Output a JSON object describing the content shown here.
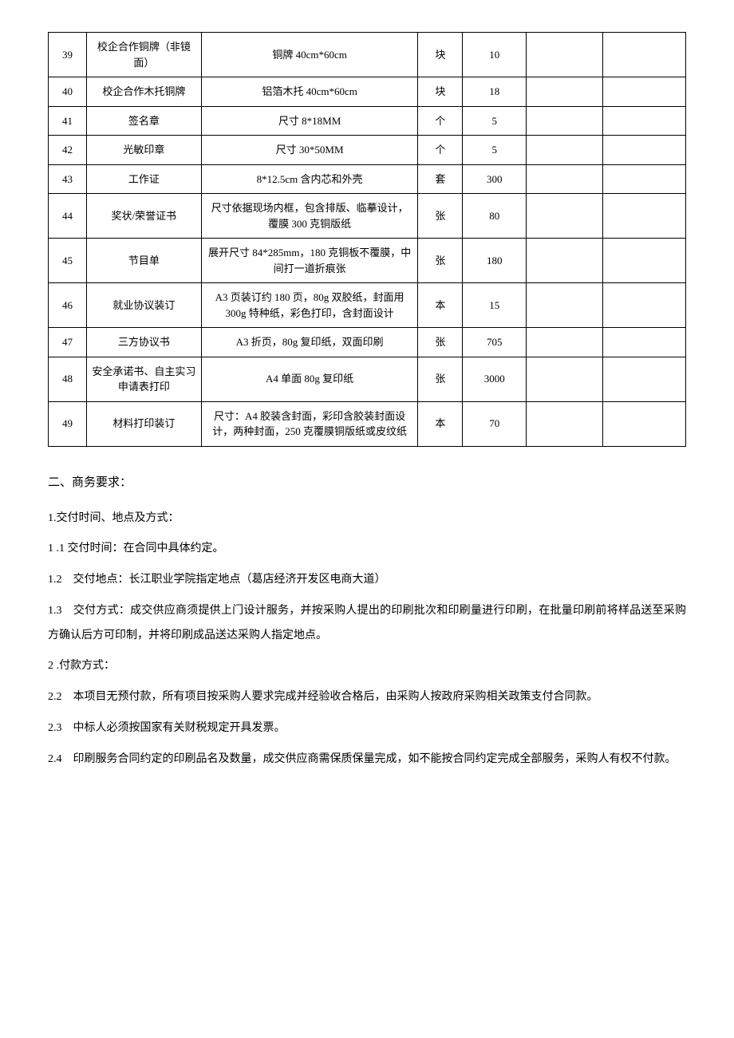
{
  "table": {
    "rows": [
      {
        "idx": "39",
        "name": "校企合作铜牌（非镜面）",
        "spec": "铜牌 40cm*60cm",
        "unit": "块",
        "qty": "10"
      },
      {
        "idx": "40",
        "name": "校企合作木托铜牌",
        "spec": "铝箔木托 40cm*60cm",
        "unit": "块",
        "qty": "18"
      },
      {
        "idx": "41",
        "name": "签名章",
        "spec": "尺寸 8*18MM",
        "unit": "个",
        "qty": "5"
      },
      {
        "idx": "42",
        "name": "光敏印章",
        "spec": "尺寸 30*50MM",
        "unit": "个",
        "qty": "5"
      },
      {
        "idx": "43",
        "name": "工作证",
        "spec": "8*12.5cm 含内芯和外壳",
        "unit": "套",
        "qty": "300"
      },
      {
        "idx": "44",
        "name": "奖状/荣誉证书",
        "spec": "尺寸依据现场内框，包含排版、临摹设计，覆膜 300 克铜版纸",
        "unit": "张",
        "qty": "80"
      },
      {
        "idx": "45",
        "name": "节目单",
        "spec": "展开尺寸 84*285mm，180 克铜板不覆膜，中间打一道折痕张",
        "unit": "张",
        "qty": "180"
      },
      {
        "idx": "46",
        "name": "就业协议装订",
        "spec": "A3 页装订约 180 页，80g 双胶纸，封面用 300g 特种纸，彩色打印，含封面设计",
        "unit": "本",
        "qty": "15"
      },
      {
        "idx": "47",
        "name": "三方协议书",
        "spec": "A3 折页，80g 复印纸，双面印刷",
        "unit": "张",
        "qty": "705"
      },
      {
        "idx": "48",
        "name": "安全承诺书、自主实习申请表打印",
        "spec": "A4 单面 80g 复印纸",
        "unit": "张",
        "qty": "3000"
      },
      {
        "idx": "49",
        "name": "材料打印装订",
        "spec": "尺寸：A4 胶装含封面，彩印含胶装封面设计，两种封面，250 克覆膜铜版纸或皮纹纸",
        "unit": "本",
        "qty": "70"
      }
    ]
  },
  "section2": {
    "title": "二、商务要求：",
    "p1": "1.交付时间、地点及方式：",
    "p1_1": "1 .1 交付时间：在合同中具体约定。",
    "p1_2": "1.2　交付地点：长江职业学院指定地点（葛店经济开发区电商大道）",
    "p1_3": "1.3　交付方式：成交供应商须提供上门设计服务，并按采购人提出的印刷批次和印刷量进行印刷，在批量印刷前将样品送至采购方确认后方可印制，并将印刷成品送达采购人指定地点。",
    "p2": "2 .付款方式：",
    "p2_2": "2.2　本项目无预付款，所有项目按采购人要求完成并经验收合格后，由采购人按政府采购相关政策支付合同款。",
    "p2_3": "2.3　中标人必须按国家有关财税规定开具发票。",
    "p2_4": "2.4　印刷服务合同约定的印刷品名及数量，成交供应商需保质保量完成，如不能按合同约定完成全部服务，采购人有权不付款。"
  }
}
